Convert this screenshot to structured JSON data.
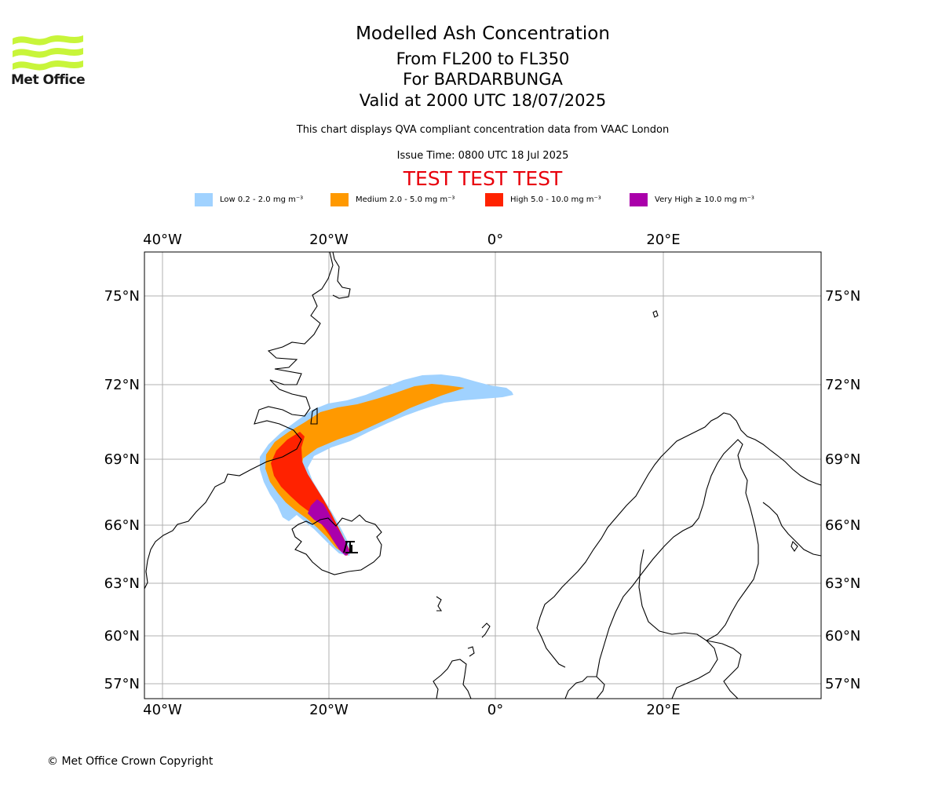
{
  "logo": {
    "text": "Met Office",
    "accent_color": "#c8f53a"
  },
  "title": {
    "main": "Modelled Ash Concentration",
    "levels": "From FL200 to FL350",
    "volcano": "For BARDARBUNGA",
    "valid": "Valid at 2000 UTC 18/07/2025",
    "compliance": "This chart displays QVA compliant concentration data from VAAC London",
    "issue": "Issue Time: 0800 UTC 18 Jul 2025",
    "test_banner": "TEST TEST TEST"
  },
  "legend": [
    {
      "label": "Low 0.2 - 2.0 mg m⁻³",
      "color": "#a0d2ff"
    },
    {
      "label": "Medium 2.0 - 5.0 mg m⁻³",
      "color": "#ff9900"
    },
    {
      "label": "High 5.0 - 10.0 mg m⁻³",
      "color": "#ff2200"
    },
    {
      "label": "Very High  ≥  10.0 mg m⁻³",
      "color": "#aa00aa"
    }
  ],
  "map": {
    "lon_labels": [
      "40°W",
      "20°W",
      "0°",
      "20°E"
    ],
    "lat_labels": [
      "75°N",
      "72°N",
      "69°N",
      "66°N",
      "63°N",
      "60°N",
      "57°N"
    ],
    "volcano_marker": "triangle-icon"
  },
  "footer": {
    "copyright": "© Met Office Crown Copyright"
  }
}
